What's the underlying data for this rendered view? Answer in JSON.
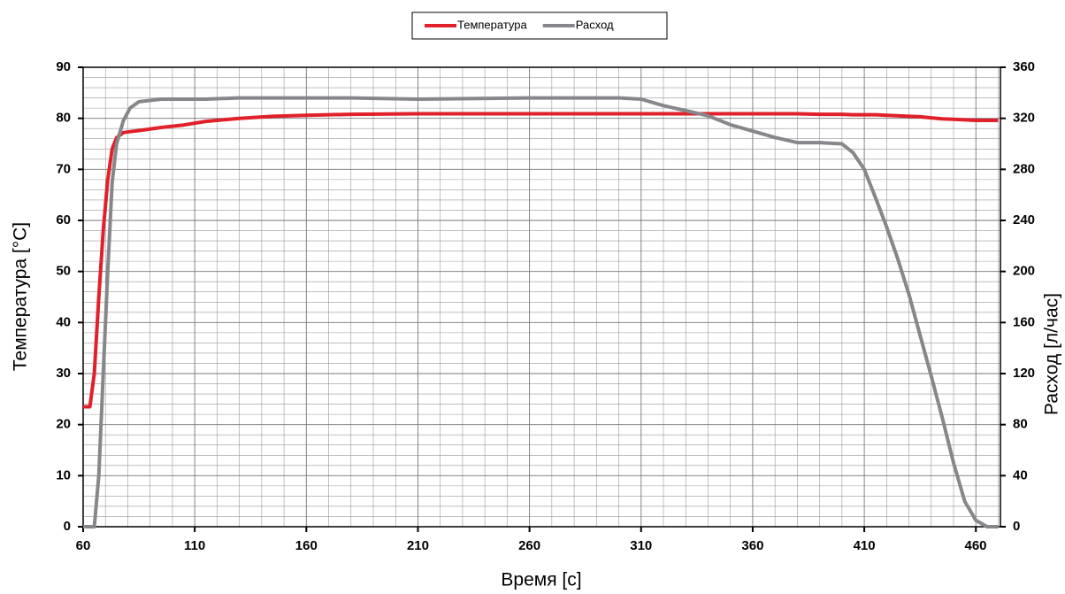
{
  "chart_data": {
    "type": "line",
    "x_label": "Время [с]",
    "y_label": "Температура [°C]",
    "y2_label": "Расход [л/час]",
    "x": [
      60,
      63,
      65,
      67,
      69,
      71,
      73,
      75,
      78,
      81,
      85,
      95,
      105,
      115,
      130,
      145,
      160,
      180,
      210,
      260,
      300,
      310,
      320,
      330,
      340,
      350,
      360,
      370,
      380,
      390,
      400,
      405,
      410,
      415,
      420,
      425,
      430,
      435,
      440,
      445,
      450,
      455,
      460,
      465,
      470
    ],
    "series": [
      {
        "name": "Температура",
        "color": "#e0202a",
        "values": [
          23.5,
          23.5,
          30,
          45,
          58,
          68,
          74,
          76.2,
          77.2,
          77.4,
          77.6,
          78.2,
          78.7,
          79.4,
          80,
          80.4,
          80.6,
          80.8,
          80.9,
          80.9,
          80.9,
          80.9,
          80.9,
          80.9,
          80.9,
          80.9,
          80.9,
          80.9,
          80.9,
          80.8,
          80.8,
          80.7,
          80.7,
          80.7,
          80.6,
          80.5,
          80.4,
          80.3,
          80.1,
          79.9,
          79.8,
          79.7,
          79.6,
          79.6,
          79.6
        ]
      },
      {
        "name": "Расход",
        "color": "#87878b",
        "axis": "y2",
        "values": [
          0,
          0,
          0,
          40,
          120,
          200,
          270,
          300,
          318,
          328,
          333,
          335,
          335,
          335,
          336,
          336,
          336,
          336,
          335,
          336,
          336,
          335,
          330,
          326,
          322,
          315,
          310,
          305,
          301,
          301,
          300,
          293,
          280,
          258,
          235,
          210,
          182,
          150,
          118,
          85,
          50,
          20,
          5,
          0,
          0
        ]
      }
    ],
    "xlim": [
      60,
      471
    ],
    "xticks": [
      60,
      110,
      160,
      210,
      260,
      310,
      360,
      410,
      460
    ],
    "ylim": [
      0,
      90
    ],
    "yticks": [
      0,
      10,
      20,
      30,
      40,
      50,
      60,
      70,
      80,
      90
    ],
    "y2lim": [
      0,
      360
    ],
    "y2ticks": [
      0,
      40,
      80,
      120,
      160,
      200,
      240,
      280,
      320,
      360
    ],
    "grid": true,
    "legend": "top"
  }
}
